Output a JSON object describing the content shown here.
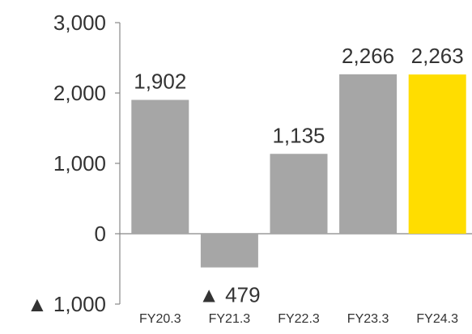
{
  "chart_data": {
    "type": "bar",
    "categories": [
      "FY20.3",
      "FY21.3",
      "FY22.3",
      "FY23.3",
      "FY24.3"
    ],
    "values": [
      1902,
      -479,
      1135,
      2266,
      2263
    ],
    "value_labels": [
      "1,902",
      "▲ 479",
      "1,135",
      "2,266",
      "2,263"
    ],
    "ylim": [
      -1000,
      3000
    ],
    "y_ticks": [
      {
        "value": 3000,
        "label": "3,000"
      },
      {
        "value": 2000,
        "label": "2,000"
      },
      {
        "value": 1000,
        "label": "1,000"
      },
      {
        "value": 0,
        "label": "0"
      },
      {
        "value": -1000,
        "label": "▲ 1,000"
      }
    ],
    "grid": false,
    "colors": {
      "bar": "#a6a6a6",
      "highlight": "#ffdd00",
      "axis": "#888888",
      "text": "#333333"
    },
    "highlight_index": 4,
    "title": "",
    "xlabel": "",
    "ylabel": ""
  }
}
